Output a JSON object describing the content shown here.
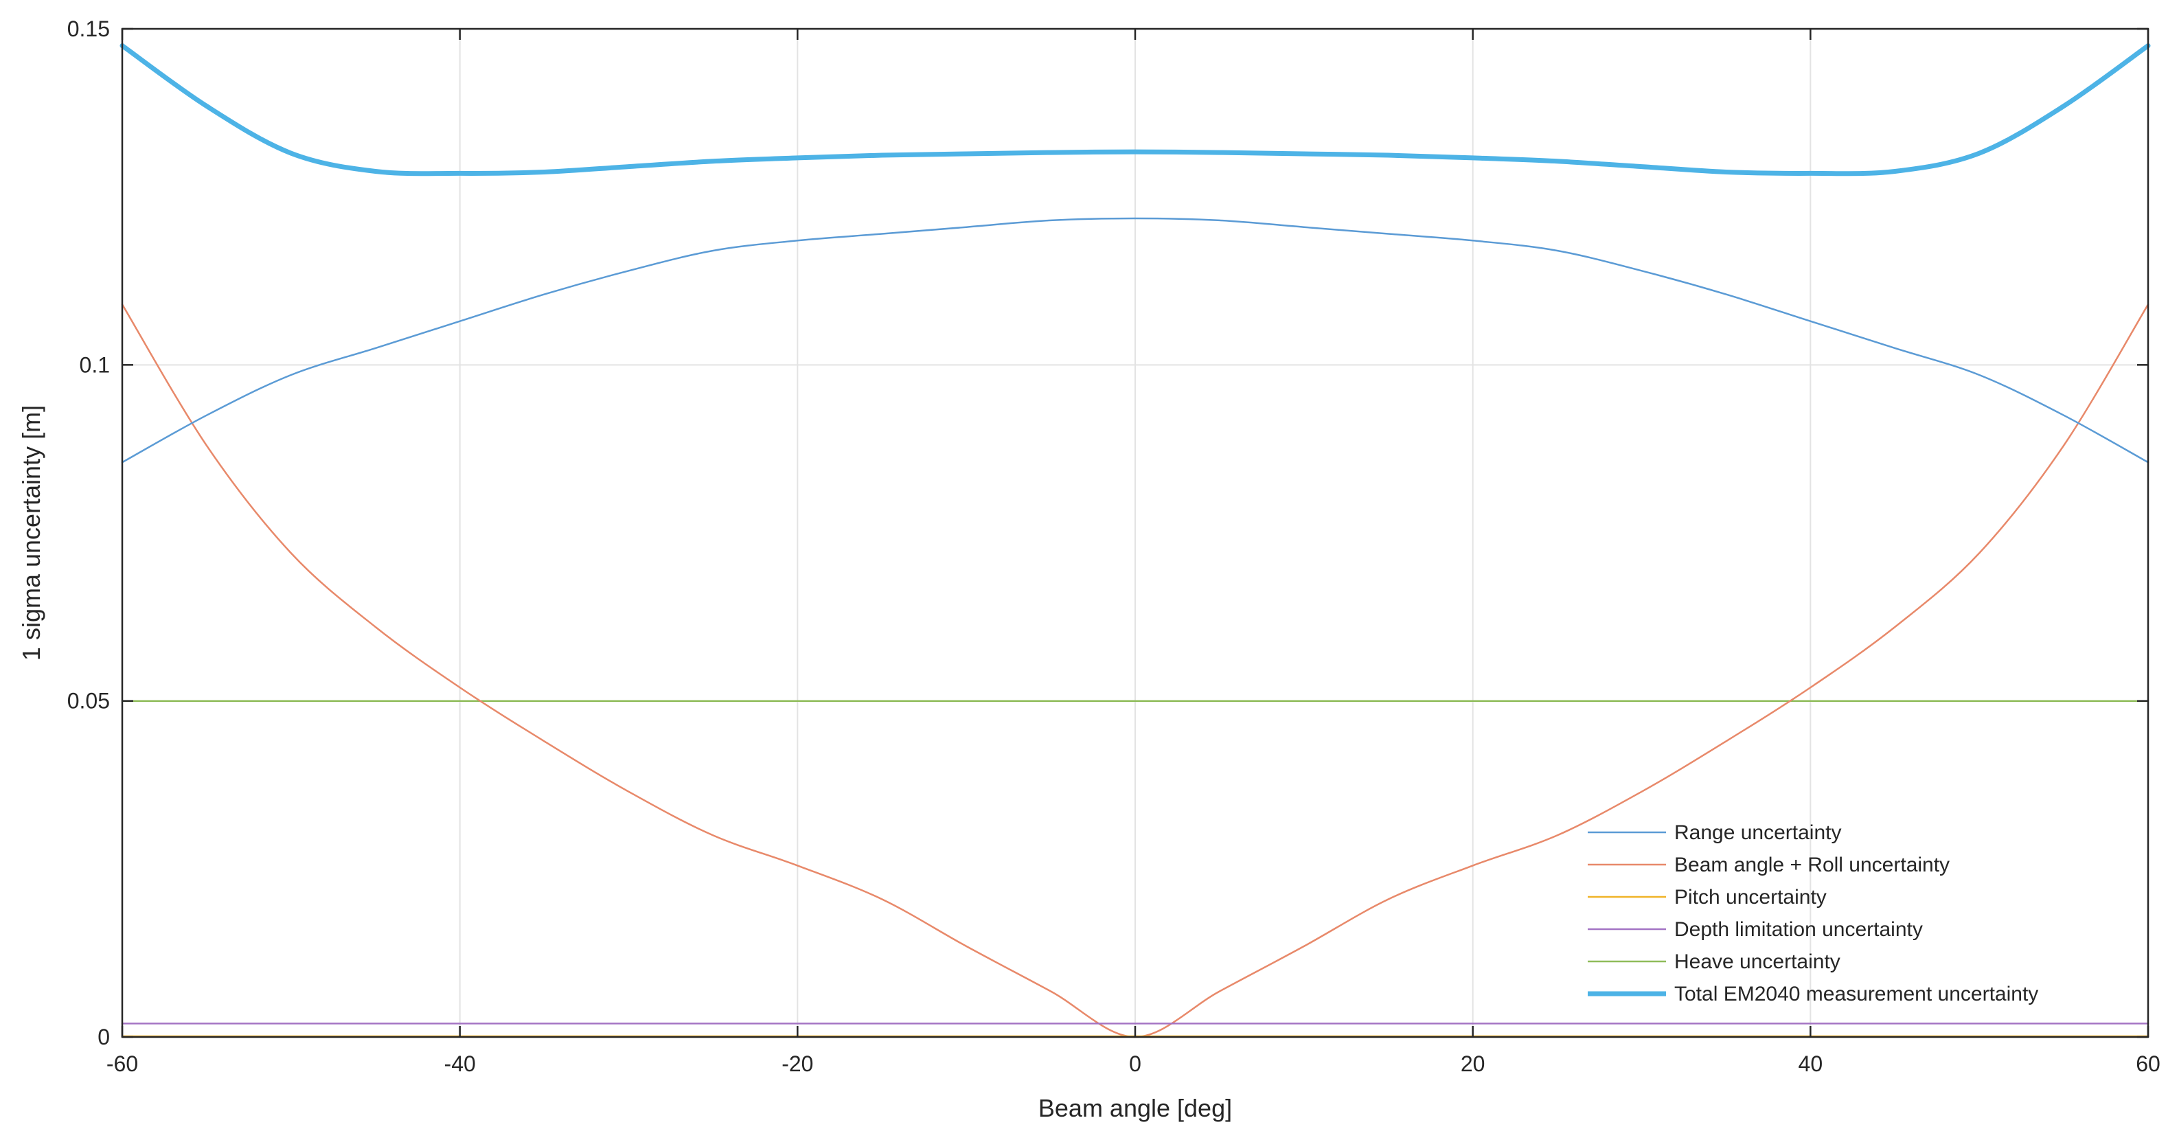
{
  "chart_data": {
    "type": "line",
    "xlabel": "Beam angle [deg]",
    "ylabel": "1 sigma uncertainty [m]",
    "xlim": [
      -60,
      60
    ],
    "ylim": [
      0,
      0.15
    ],
    "xticks": [
      -60,
      -40,
      -20,
      0,
      20,
      40,
      60
    ],
    "xtick_labels": [
      "-60",
      "-40",
      "-20",
      "0",
      "20",
      "40",
      "60"
    ],
    "yticks": [
      0,
      0.05,
      0.1,
      0.15
    ],
    "ytick_labels": [
      "0",
      "0.05",
      "0.1",
      "0.15"
    ],
    "grid": true,
    "legend_position": "bottom-right",
    "x": [
      -60,
      -55,
      -50,
      -45,
      -40,
      -35,
      -30,
      -25,
      -20,
      -15,
      -10,
      -5,
      0,
      5,
      10,
      15,
      20,
      25,
      30,
      35,
      40,
      45,
      50,
      55,
      60
    ],
    "series": [
      {
        "name": "Range uncertainty",
        "color": "#5b9bd5",
        "width": 2.5,
        "values": [
          0.0855,
          0.0925,
          0.0985,
          0.1025,
          0.1065,
          0.1105,
          0.114,
          0.117,
          0.1185,
          0.1195,
          0.1205,
          0.1215,
          0.1218,
          0.1215,
          0.1205,
          0.1195,
          0.1185,
          0.117,
          0.114,
          0.1105,
          0.1065,
          0.1025,
          0.0985,
          0.0925,
          0.0855
        ]
      },
      {
        "name": "Beam angle + Roll uncertainty",
        "color": "#e8896a",
        "width": 2.5,
        "values": [
          0.109,
          0.088,
          0.072,
          0.061,
          0.052,
          0.044,
          0.0365,
          0.03,
          0.0255,
          0.0205,
          0.0135,
          0.0068,
          0.0,
          0.0068,
          0.0135,
          0.0205,
          0.0255,
          0.03,
          0.0365,
          0.044,
          0.052,
          0.061,
          0.072,
          0.088,
          0.109
        ]
      },
      {
        "name": "Pitch uncertainty",
        "color": "#f0b429",
        "width": 2.5,
        "values": [
          0.0001,
          0.0001,
          0.0001,
          0.0001,
          0.0001,
          0.0001,
          0.0001,
          0.0001,
          0.0001,
          0.0001,
          0.0001,
          0.0001,
          0.0001,
          0.0001,
          0.0001,
          0.0001,
          0.0001,
          0.0001,
          0.0001,
          0.0001,
          0.0001,
          0.0001,
          0.0001,
          0.0001,
          0.0001
        ]
      },
      {
        "name": "Depth limitation uncertainty",
        "color": "#a474c4",
        "width": 2.5,
        "values": [
          0.002,
          0.002,
          0.002,
          0.002,
          0.002,
          0.002,
          0.002,
          0.002,
          0.002,
          0.002,
          0.002,
          0.002,
          0.002,
          0.002,
          0.002,
          0.002,
          0.002,
          0.002,
          0.002,
          0.002,
          0.002,
          0.002,
          0.002,
          0.002,
          0.002
        ]
      },
      {
        "name": "Heave uncertainty",
        "color": "#8fbc5a",
        "width": 2.5,
        "values": [
          0.05,
          0.05,
          0.05,
          0.05,
          0.05,
          0.05,
          0.05,
          0.05,
          0.05,
          0.05,
          0.05,
          0.05,
          0.05,
          0.05,
          0.05,
          0.05,
          0.05,
          0.05,
          0.05,
          0.05,
          0.05,
          0.05,
          0.05,
          0.05,
          0.05
        ]
      },
      {
        "name": "Total EM2040 measurement uncertainty",
        "color": "#4db3e6",
        "width": 7,
        "values": [
          0.1475,
          0.1385,
          0.1315,
          0.1288,
          0.1285,
          0.1287,
          0.1295,
          0.1303,
          0.1308,
          0.1312,
          0.1314,
          0.1316,
          0.1317,
          0.1316,
          0.1314,
          0.1312,
          0.1308,
          0.1303,
          0.1295,
          0.1287,
          0.1285,
          0.1288,
          0.1315,
          0.1385,
          0.1475
        ]
      }
    ]
  }
}
